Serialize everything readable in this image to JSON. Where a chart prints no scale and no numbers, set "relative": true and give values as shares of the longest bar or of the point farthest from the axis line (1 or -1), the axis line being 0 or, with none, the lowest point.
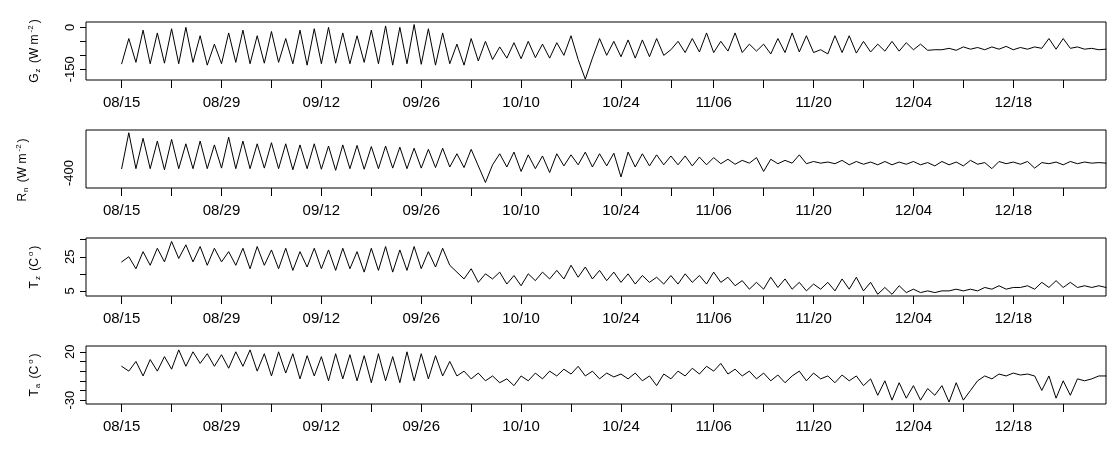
{
  "chart_data": [
    {
      "type": "line",
      "ylabel": "G$_{z}$ (W m$^{-2}$)",
      "marker": "none",
      "line_style": "solid",
      "xlim": [
        "--08-10",
        "--12-31"
      ],
      "xticks": [
        {
          "value": "--08-15",
          "label": "08/15"
        },
        {
          "value": "--08-22",
          "label": null
        },
        {
          "value": "--08-29",
          "label": "08/29"
        },
        {
          "value": "--09-05",
          "label": null
        },
        {
          "value": "--09-12",
          "label": "09/12"
        },
        {
          "value": "--09-19",
          "label": null
        },
        {
          "value": "--09-26",
          "label": "09/26"
        },
        {
          "value": "--10-03",
          "label": null
        },
        {
          "value": "--10-10",
          "label": "10/10"
        },
        {
          "value": "--10-17",
          "label": null
        },
        {
          "value": "--10-24",
          "label": "10/24"
        },
        {
          "value": "--10-31",
          "label": null
        },
        {
          "value": "--11-06",
          "label": "11/06"
        },
        {
          "value": "--11-13",
          "label": null
        },
        {
          "value": "--11-20",
          "label": "11/20"
        },
        {
          "value": "--11-27",
          "label": null
        },
        {
          "value": "--12-04",
          "label": "12/04"
        },
        {
          "value": "--12-11",
          "label": null
        },
        {
          "value": "--12-18",
          "label": "12/18"
        },
        {
          "value": "--12-25",
          "label": null
        }
      ],
      "ylim": [
        -188,
        19
      ],
      "yticks": [
        {
          "value": 0,
          "label": "0"
        },
        {
          "value": -50,
          "label": null
        },
        {
          "value": -100,
          "label": null
        },
        {
          "value": -150,
          "label": "-150"
        }
      ],
      "x": [
        "--08-15",
        "--08-16",
        "--08-17",
        "--08-18",
        "--08-19",
        "--08-20",
        "--08-21",
        "--08-22",
        "--08-23",
        "--08-24",
        "--08-25",
        "--08-26",
        "--08-27",
        "--08-28",
        "--08-29",
        "--08-30",
        "--08-31",
        "--09-01",
        "--09-02",
        "--09-03",
        "--09-04",
        "--09-05",
        "--09-06",
        "--09-07",
        "--09-08",
        "--09-09",
        "--09-10",
        "--09-11",
        "--09-12",
        "--09-13",
        "--09-14",
        "--09-15",
        "--09-16",
        "--09-17",
        "--09-18",
        "--09-19",
        "--09-20",
        "--09-21",
        "--09-22",
        "--09-23",
        "--09-24",
        "--09-25",
        "--09-26",
        "--09-27",
        "--09-28",
        "--09-29",
        "--09-30",
        "--10-01",
        "--10-02",
        "--10-03",
        "--10-04",
        "--10-05",
        "--10-06",
        "--10-07",
        "--10-08",
        "--10-09",
        "--10-10",
        "--10-11",
        "--10-12",
        "--10-13",
        "--10-14",
        "--10-15",
        "--10-16",
        "--10-17",
        "--10-18",
        "--10-19",
        "--10-20",
        "--10-21",
        "--10-22",
        "--10-23",
        "--10-24",
        "--10-25",
        "--10-26",
        "--10-27",
        "--10-28",
        "--10-29",
        "--10-30",
        "--10-31",
        "--11-01",
        "--11-02",
        "--11-03",
        "--11-04",
        "--11-05",
        "--11-06",
        "--11-07",
        "--11-08",
        "--11-09",
        "--11-10",
        "--11-11",
        "--11-12",
        "--11-13",
        "--11-14",
        "--11-15",
        "--11-16",
        "--11-17",
        "--11-18",
        "--11-19",
        "--11-20",
        "--11-21",
        "--11-22",
        "--11-23",
        "--11-24",
        "--11-25",
        "--11-26",
        "--11-27",
        "--11-28",
        "--11-29",
        "--11-30",
        "--12-01",
        "--12-02",
        "--12-03",
        "--12-04",
        "--12-05",
        "--12-06",
        "--12-07",
        "--12-08",
        "--12-09",
        "--12-10",
        "--12-11",
        "--12-12",
        "--12-13",
        "--12-14",
        "--12-15",
        "--12-16",
        "--12-17",
        "--12-18",
        "--12-19",
        "--12-20",
        "--12-21",
        "--12-22",
        "--12-23",
        "--12-24",
        "--12-25",
        "--12-26",
        "--12-27",
        "--12-28",
        "--12-29",
        "--12-30",
        "--12-31"
      ],
      "series": [
        {
          "color": "#000000",
          "values": [
            -130,
            -40,
            -125,
            -10,
            -130,
            -20,
            -128,
            -5,
            -130,
            0,
            -125,
            -30,
            -135,
            -60,
            -130,
            -20,
            -125,
            -10,
            -130,
            -30,
            -128,
            -15,
            -125,
            -40,
            -130,
            -10,
            -135,
            -5,
            -130,
            0,
            -128,
            -20,
            -130,
            -30,
            -125,
            -10,
            -130,
            5,
            -135,
            0,
            -130,
            10,
            -132,
            -5,
            -135,
            -20,
            -130,
            -60,
            -135,
            -40,
            -120,
            -50,
            -115,
            -70,
            -110,
            -55,
            -112,
            -50,
            -108,
            -60,
            -110,
            -55,
            -100,
            -30,
            -115,
            -185,
            -110,
            -40,
            -100,
            -50,
            -105,
            -45,
            -110,
            -45,
            -105,
            -40,
            -100,
            -80,
            -50,
            -90,
            -40,
            -88,
            -20,
            -90,
            -50,
            -85,
            -20,
            -90,
            -60,
            -85,
            -60,
            -95,
            -40,
            -90,
            -20,
            -88,
            -30,
            -90,
            -80,
            -95,
            -30,
            -90,
            -30,
            -92,
            -50,
            -88,
            -60,
            -85,
            -50,
            -85,
            -55,
            -80,
            -60,
            -82,
            -80,
            -80,
            -75,
            -82,
            -70,
            -78,
            -72,
            -80,
            -70,
            -78,
            -68,
            -80,
            -72,
            -78,
            -70,
            -75,
            -40,
            -78,
            -40,
            -75,
            -70,
            -78,
            -75,
            -80,
            -78
          ]
        }
      ]
    },
    {
      "type": "line",
      "ylabel": "R$_{n}$ (W m$^{-2}$)",
      "relative": true,
      "annotations": [
        "-400"
      ],
      "marker": "none",
      "line_style": "solid",
      "xlim": [
        "--08-10",
        "--12-31"
      ],
      "xticks": [
        {
          "value": "--08-15",
          "label": "08/15"
        },
        {
          "value": "--08-22",
          "label": null
        },
        {
          "value": "--08-29",
          "label": "08/29"
        },
        {
          "value": "--09-05",
          "label": null
        },
        {
          "value": "--09-12",
          "label": "09/12"
        },
        {
          "value": "--09-19",
          "label": null
        },
        {
          "value": "--09-26",
          "label": "09/26"
        },
        {
          "value": "--10-03",
          "label": null
        },
        {
          "value": "--10-10",
          "label": "10/10"
        },
        {
          "value": "--10-17",
          "label": null
        },
        {
          "value": "--10-24",
          "label": "10/24"
        },
        {
          "value": "--10-31",
          "label": null
        },
        {
          "value": "--11-06",
          "label": "11/06"
        },
        {
          "value": "--11-13",
          "label": null
        },
        {
          "value": "--11-20",
          "label": "11/20"
        },
        {
          "value": "--11-27",
          "label": null
        },
        {
          "value": "--12-04",
          "label": "12/04"
        },
        {
          "value": "--12-11",
          "label": null
        },
        {
          "value": "--12-18",
          "label": "12/18"
        },
        {
          "value": "--12-25",
          "label": null
        }
      ],
      "x": [
        "--08-15",
        "--08-16",
        "--08-17",
        "--08-18",
        "--08-19",
        "--08-20",
        "--08-21",
        "--08-22",
        "--08-23",
        "--08-24",
        "--08-25",
        "--08-26",
        "--08-27",
        "--08-28",
        "--08-29",
        "--08-30",
        "--08-31",
        "--09-01",
        "--09-02",
        "--09-03",
        "--09-04",
        "--09-05",
        "--09-06",
        "--09-07",
        "--09-08",
        "--09-09",
        "--09-10",
        "--09-11",
        "--09-12",
        "--09-13",
        "--09-14",
        "--09-15",
        "--09-16",
        "--09-17",
        "--09-18",
        "--09-19",
        "--09-20",
        "--09-21",
        "--09-22",
        "--09-23",
        "--09-24",
        "--09-25",
        "--09-26",
        "--09-27",
        "--09-28",
        "--09-29",
        "--09-30",
        "--10-01",
        "--10-02",
        "--10-03",
        "--10-04",
        "--10-05",
        "--10-06",
        "--10-07",
        "--10-08",
        "--10-09",
        "--10-10",
        "--10-11",
        "--10-12",
        "--10-13",
        "--10-14",
        "--10-15",
        "--10-16",
        "--10-17",
        "--10-18",
        "--10-19",
        "--10-20",
        "--10-21",
        "--10-22",
        "--10-23",
        "--10-24",
        "--10-25",
        "--10-26",
        "--10-27",
        "--10-28",
        "--10-29",
        "--10-30",
        "--10-31",
        "--11-01",
        "--11-02",
        "--11-03",
        "--11-04",
        "--11-05",
        "--11-06",
        "--11-07",
        "--11-08",
        "--11-09",
        "--11-10",
        "--11-11",
        "--11-12",
        "--11-13",
        "--11-14",
        "--11-15",
        "--11-16",
        "--11-17",
        "--11-18",
        "--11-19",
        "--11-20",
        "--11-21",
        "--11-22",
        "--11-23",
        "--11-24",
        "--11-25",
        "--11-26",
        "--11-27",
        "--11-28",
        "--11-29",
        "--11-30",
        "--12-01",
        "--12-02",
        "--12-03",
        "--12-04",
        "--12-05",
        "--12-06",
        "--12-07",
        "--12-08",
        "--12-09",
        "--12-10",
        "--12-11",
        "--12-12",
        "--12-13",
        "--12-14",
        "--12-15",
        "--12-16",
        "--12-17",
        "--12-18",
        "--12-19",
        "--12-20",
        "--12-21",
        "--12-22",
        "--12-23",
        "--12-24",
        "--12-25",
        "--12-26",
        "--12-27",
        "--12-28",
        "--12-29",
        "--12-30",
        "--12-31"
      ],
      "series": [
        {
          "color": "#000000",
          "values": [
            0.35,
            1,
            0.35,
            0.9,
            0.35,
            0.85,
            0.33,
            0.88,
            0.35,
            0.8,
            0.35,
            0.85,
            0.35,
            0.78,
            0.36,
            0.92,
            0.35,
            0.85,
            0.35,
            0.8,
            0.36,
            0.82,
            0.35,
            0.8,
            0.33,
            0.78,
            0.35,
            0.8,
            0.34,
            0.76,
            0.32,
            0.78,
            0.35,
            0.77,
            0.34,
            0.75,
            0.35,
            0.76,
            0.36,
            0.74,
            0.35,
            0.72,
            0.36,
            0.7,
            0.37,
            0.72,
            0.38,
            0.62,
            0.37,
            0.7,
            0.4,
            0.1,
            0.42,
            0.62,
            0.38,
            0.65,
            0.3,
            0.6,
            0.35,
            0.58,
            0.28,
            0.62,
            0.4,
            0.6,
            0.42,
            0.65,
            0.38,
            0.62,
            0.4,
            0.63,
            0.2,
            0.65,
            0.38,
            0.62,
            0.4,
            0.6,
            0.42,
            0.58,
            0.42,
            0.58,
            0.4,
            0.56,
            0.42,
            0.55,
            0.44,
            0.52,
            0.43,
            0.5,
            0.45,
            0.55,
            0.3,
            0.52,
            0.44,
            0.5,
            0.45,
            0.6,
            0.44,
            0.48,
            0.45,
            0.47,
            0.44,
            0.5,
            0.42,
            0.48,
            0.43,
            0.47,
            0.42,
            0.48,
            0.42,
            0.47,
            0.43,
            0.48,
            0.42,
            0.46,
            0.4,
            0.48,
            0.42,
            0.47,
            0.4,
            0.5,
            0.43,
            0.46,
            0.35,
            0.48,
            0.44,
            0.47,
            0.43,
            0.48,
            0.36,
            0.46,
            0.44,
            0.47,
            0.42,
            0.48,
            0.44,
            0.47,
            0.45,
            0.46,
            0.45
          ]
        }
      ]
    },
    {
      "type": "line",
      "ylabel": "T$_{z}$ (C$^{o}$)",
      "marker": "none",
      "line_style": "solid",
      "xlim": [
        "--08-10",
        "--12-31"
      ],
      "xticks": [
        {
          "value": "--08-15",
          "label": "08/15"
        },
        {
          "value": "--08-22",
          "label": null
        },
        {
          "value": "--08-29",
          "label": "08/29"
        },
        {
          "value": "--09-05",
          "label": null
        },
        {
          "value": "--09-12",
          "label": "09/12"
        },
        {
          "value": "--09-19",
          "label": null
        },
        {
          "value": "--09-26",
          "label": "09/26"
        },
        {
          "value": "--10-03",
          "label": null
        },
        {
          "value": "--10-10",
          "label": "10/10"
        },
        {
          "value": "--10-17",
          "label": null
        },
        {
          "value": "--10-24",
          "label": "10/24"
        },
        {
          "value": "--10-31",
          "label": null
        },
        {
          "value": "--11-06",
          "label": "11/06"
        },
        {
          "value": "--11-13",
          "label": null
        },
        {
          "value": "--11-20",
          "label": "11/20"
        },
        {
          "value": "--11-27",
          "label": null
        },
        {
          "value": "--12-04",
          "label": "12/04"
        },
        {
          "value": "--12-11",
          "label": null
        },
        {
          "value": "--12-18",
          "label": "12/18"
        },
        {
          "value": "--12-25",
          "label": null
        }
      ],
      "ylim": [
        2,
        36
      ],
      "yticks": [
        {
          "value": 5,
          "label": "5"
        },
        {
          "value": 15,
          "label": null
        },
        {
          "value": 25,
          "label": "25"
        },
        {
          "value": 35,
          "label": null
        }
      ],
      "x": [
        "--08-15",
        "--08-16",
        "--08-17",
        "--08-18",
        "--08-19",
        "--08-20",
        "--08-21",
        "--08-22",
        "--08-23",
        "--08-24",
        "--08-25",
        "--08-26",
        "--08-27",
        "--08-28",
        "--08-29",
        "--08-30",
        "--08-31",
        "--09-01",
        "--09-02",
        "--09-03",
        "--09-04",
        "--09-05",
        "--09-06",
        "--09-07",
        "--09-08",
        "--09-09",
        "--09-10",
        "--09-11",
        "--09-12",
        "--09-13",
        "--09-14",
        "--09-15",
        "--09-16",
        "--09-17",
        "--09-18",
        "--09-19",
        "--09-20",
        "--09-21",
        "--09-22",
        "--09-23",
        "--09-24",
        "--09-25",
        "--09-26",
        "--09-27",
        "--09-28",
        "--09-29",
        "--09-30",
        "--10-01",
        "--10-02",
        "--10-03",
        "--10-04",
        "--10-05",
        "--10-06",
        "--10-07",
        "--10-08",
        "--10-09",
        "--10-10",
        "--10-11",
        "--10-12",
        "--10-13",
        "--10-14",
        "--10-15",
        "--10-16",
        "--10-17",
        "--10-18",
        "--10-19",
        "--10-20",
        "--10-21",
        "--10-22",
        "--10-23",
        "--10-24",
        "--10-25",
        "--10-26",
        "--10-27",
        "--10-28",
        "--10-29",
        "--10-30",
        "--10-31",
        "--11-01",
        "--11-02",
        "--11-03",
        "--11-04",
        "--11-05",
        "--11-06",
        "--11-07",
        "--11-08",
        "--11-09",
        "--11-10",
        "--11-11",
        "--11-12",
        "--11-13",
        "--11-14",
        "--11-15",
        "--11-16",
        "--11-17",
        "--11-18",
        "--11-19",
        "--11-20",
        "--11-21",
        "--11-22",
        "--11-23",
        "--11-24",
        "--11-25",
        "--11-26",
        "--11-27",
        "--11-28",
        "--11-29",
        "--11-30",
        "--12-01",
        "--12-02",
        "--12-03",
        "--12-04",
        "--12-05",
        "--12-06",
        "--12-07",
        "--12-08",
        "--12-09",
        "--12-10",
        "--12-11",
        "--12-12",
        "--12-13",
        "--12-14",
        "--12-15",
        "--12-16",
        "--12-17",
        "--12-18",
        "--12-19",
        "--12-20",
        "--12-21",
        "--12-22",
        "--12-23",
        "--12-24",
        "--12-25",
        "--12-26",
        "--12-27",
        "--12-28",
        "--12-29",
        "--12-30",
        "--12-31"
      ],
      "series": [
        {
          "color": "#000000",
          "values": [
            22,
            25,
            18,
            28,
            20,
            30,
            22,
            34,
            24,
            32,
            22,
            31,
            20,
            30,
            22,
            28,
            20,
            30,
            18,
            31,
            20,
            29,
            18,
            30,
            17,
            28,
            19,
            30,
            18,
            29,
            17,
            30,
            18,
            28,
            16,
            30,
            17,
            31,
            16,
            29,
            17,
            31,
            18,
            28,
            19,
            30,
            20,
            16,
            12,
            18,
            10,
            15,
            12,
            16,
            9,
            14,
            8,
            15,
            11,
            16,
            12,
            17,
            12,
            20,
            13,
            19,
            12,
            17,
            11,
            16,
            10,
            15,
            9,
            14,
            10,
            13,
            9,
            14,
            9,
            15,
            10,
            14,
            9,
            16,
            10,
            13,
            8,
            11,
            6,
            10,
            6,
            13,
            7,
            12,
            6,
            10,
            5,
            9,
            6,
            10,
            5,
            12,
            6,
            13,
            5,
            10,
            3,
            7,
            3,
            8,
            4,
            6,
            4,
            5,
            4,
            5,
            5,
            6,
            5,
            6,
            5,
            7,
            6,
            8,
            6,
            7,
            7,
            8,
            6,
            10,
            7,
            11,
            7,
            10,
            7,
            8,
            7,
            8,
            7
          ]
        }
      ]
    },
    {
      "type": "line",
      "ylabel": "T$_{a}$ (C$^{o}$)",
      "marker": "none",
      "line_style": "solid",
      "xlim": [
        "--08-10",
        "--12-31"
      ],
      "xticks": [
        {
          "value": "--08-15",
          "label": "08/15"
        },
        {
          "value": "--08-22",
          "label": null
        },
        {
          "value": "--08-29",
          "label": "08/29"
        },
        {
          "value": "--09-05",
          "label": null
        },
        {
          "value": "--09-12",
          "label": "09/12"
        },
        {
          "value": "--09-19",
          "label": null
        },
        {
          "value": "--09-26",
          "label": "09/26"
        },
        {
          "value": "--10-03",
          "label": null
        },
        {
          "value": "--10-10",
          "label": "10/10"
        },
        {
          "value": "--10-17",
          "label": null
        },
        {
          "value": "--10-24",
          "label": "10/24"
        },
        {
          "value": "--10-31",
          "label": null
        },
        {
          "value": "--11-06",
          "label": "11/06"
        },
        {
          "value": "--11-13",
          "label": null
        },
        {
          "value": "--11-20",
          "label": "11/20"
        },
        {
          "value": "--11-27",
          "label": null
        },
        {
          "value": "--12-04",
          "label": "12/04"
        },
        {
          "value": "--12-11",
          "label": null
        },
        {
          "value": "--12-18",
          "label": "12/18"
        },
        {
          "value": "--12-25",
          "label": null
        }
      ],
      "ylim": [
        -34,
        26
      ],
      "yticks": [
        {
          "value": -30,
          "label": "-30"
        },
        {
          "value": -20,
          "label": null
        },
        {
          "value": -10,
          "label": null
        },
        {
          "value": 0,
          "label": null
        },
        {
          "value": 10,
          "label": null
        },
        {
          "value": 20,
          "label": "20"
        }
      ],
      "x": [
        "--08-15",
        "--08-16",
        "--08-17",
        "--08-18",
        "--08-19",
        "--08-20",
        "--08-21",
        "--08-22",
        "--08-23",
        "--08-24",
        "--08-25",
        "--08-26",
        "--08-27",
        "--08-28",
        "--08-29",
        "--08-30",
        "--08-31",
        "--09-01",
        "--09-02",
        "--09-03",
        "--09-04",
        "--09-05",
        "--09-06",
        "--09-07",
        "--09-08",
        "--09-09",
        "--09-10",
        "--09-11",
        "--09-12",
        "--09-13",
        "--09-14",
        "--09-15",
        "--09-16",
        "--09-17",
        "--09-18",
        "--09-19",
        "--09-20",
        "--09-21",
        "--09-22",
        "--09-23",
        "--09-24",
        "--09-25",
        "--09-26",
        "--09-27",
        "--09-28",
        "--09-29",
        "--09-30",
        "--10-01",
        "--10-02",
        "--10-03",
        "--10-04",
        "--10-05",
        "--10-06",
        "--10-07",
        "--10-08",
        "--10-09",
        "--10-10",
        "--10-11",
        "--10-12",
        "--10-13",
        "--10-14",
        "--10-15",
        "--10-16",
        "--10-17",
        "--10-18",
        "--10-19",
        "--10-20",
        "--10-21",
        "--10-22",
        "--10-23",
        "--10-24",
        "--10-25",
        "--10-26",
        "--10-27",
        "--10-28",
        "--10-29",
        "--10-30",
        "--10-31",
        "--11-01",
        "--11-02",
        "--11-03",
        "--11-04",
        "--11-05",
        "--11-06",
        "--11-07",
        "--11-08",
        "--11-09",
        "--11-10",
        "--11-11",
        "--11-12",
        "--11-13",
        "--11-14",
        "--11-15",
        "--11-16",
        "--11-17",
        "--11-18",
        "--11-19",
        "--11-20",
        "--11-21",
        "--11-22",
        "--11-23",
        "--11-24",
        "--11-25",
        "--11-26",
        "--11-27",
        "--11-28",
        "--11-29",
        "--11-30",
        "--12-01",
        "--12-02",
        "--12-03",
        "--12-04",
        "--12-05",
        "--12-06",
        "--12-07",
        "--12-08",
        "--12-09",
        "--12-10",
        "--12-11",
        "--12-12",
        "--12-13",
        "--12-14",
        "--12-15",
        "--12-16",
        "--12-17",
        "--12-18",
        "--12-19",
        "--12-20",
        "--12-21",
        "--12-22",
        "--12-23",
        "--12-24",
        "--12-25",
        "--12-26",
        "--12-27",
        "--12-28",
        "--12-29",
        "--12-30",
        "--12-31"
      ],
      "series": [
        {
          "color": "#000000",
          "values": [
            5,
            0,
            10,
            -5,
            12,
            0,
            15,
            2,
            22,
            5,
            20,
            8,
            18,
            5,
            17,
            3,
            20,
            5,
            22,
            0,
            18,
            -5,
            20,
            -2,
            18,
            -8,
            16,
            -5,
            15,
            -10,
            18,
            -8,
            17,
            -10,
            16,
            -12,
            18,
            -10,
            15,
            -12,
            20,
            -10,
            18,
            -8,
            16,
            -5,
            10,
            -5,
            0,
            -8,
            -2,
            -10,
            -5,
            -12,
            -8,
            -15,
            -5,
            -10,
            -2,
            -8,
            0,
            -5,
            2,
            -3,
            5,
            -5,
            0,
            -8,
            -2,
            -6,
            -3,
            -8,
            -2,
            -10,
            -5,
            -15,
            -3,
            -8,
            0,
            -5,
            3,
            -3,
            5,
            0,
            8,
            -3,
            2,
            -5,
            0,
            -8,
            -2,
            -10,
            -4,
            -12,
            -5,
            0,
            -10,
            -2,
            -8,
            -5,
            -12,
            -4,
            -10,
            -5,
            -15,
            -8,
            -25,
            -10,
            -30,
            -12,
            -28,
            -15,
            -30,
            -18,
            -25,
            -15,
            -32,
            -12,
            -30,
            -20,
            -10,
            -5,
            -8,
            -3,
            -5,
            -2,
            -4,
            -3,
            -5,
            -20,
            -5,
            -28,
            -10,
            -25,
            -8,
            -10,
            -8,
            -5,
            -5
          ]
        }
      ]
    }
  ]
}
